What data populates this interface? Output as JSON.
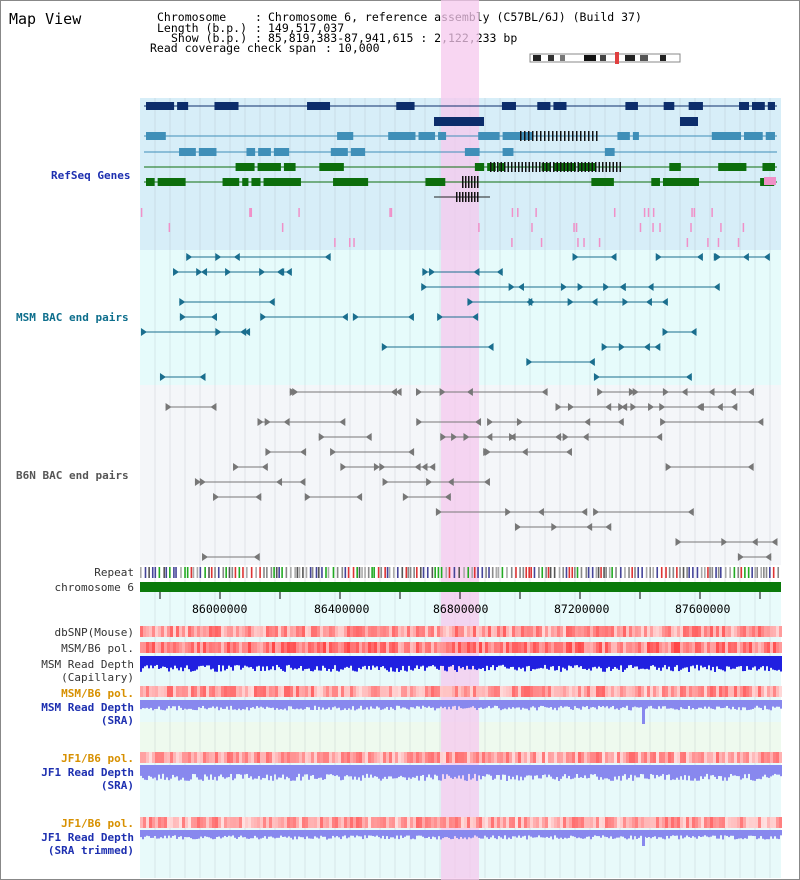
{
  "title": "Map View",
  "info": {
    "chromosome_label": "Chromosome",
    "chromosome_value": "Chromosome 6, reference assembly (C57BL/6J) (Build 37)",
    "length_label": "Length (b.p.)",
    "length_value": "149,517,037",
    "show_label": "Show (b.p.)",
    "show_value": "85,819,383-87,941,615 : 2,122,233 bp",
    "coverage_label": "Read coverage check span",
    "coverage_value": "10,000"
  },
  "tracks": {
    "refseq": "RefSeq Genes",
    "msm_bac": "MSM BAC end pairs",
    "b6n_bac": "B6N BAC end pairs",
    "repeat": "Repeat",
    "chromosome": "chromosome 6",
    "dbsnp": "dbSNP(Mouse)",
    "msm_b6_pol": "MSM/B6 pol.",
    "msm_depth_cap_1": "MSM Read Depth",
    "msm_depth_cap_2": "(Capillary)",
    "msm_b6_pol_2": "MSM/B6 pol.",
    "msm_depth_sra_1": "MSM Read Depth",
    "msm_depth_sra_2": "(SRA)",
    "jf1_b6_pol": "JF1/B6 pol.",
    "jf1_depth_sra_1": "JF1 Read Depth",
    "jf1_depth_sra_2": "(SRA)",
    "jf1_b6_pol_2": "JF1/B6 pol.",
    "jf1_depth_trim_1": "JF1 Read Depth",
    "jf1_depth_trim_2": "(SRA trimmed)"
  },
  "ruler": [
    "86000000",
    "86400000",
    "86800000",
    "87200000",
    "87600000"
  ],
  "colors": {
    "refseq_bg": "#d7eef8",
    "bac_bg": "#e6fbfb",
    "b6n_bg": "#f4f6f9",
    "highlight": "#f6c8ee",
    "chrom_bar": "#0a7a0a",
    "gene_dark": "#0c2d6b",
    "gene_mid": "#3f8fb8",
    "gene_green": "#0c6e0c",
    "gene_pink": "#f090c8",
    "msm": "#1a6e8e",
    "b6n": "#777777",
    "depth": "#2020e0",
    "depth_light": "#8888ee"
  }
}
